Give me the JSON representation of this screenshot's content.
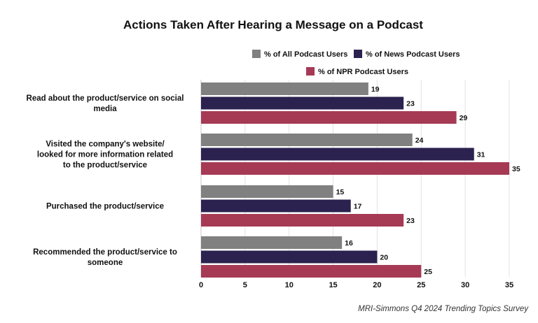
{
  "chart_data": {
    "type": "bar",
    "orientation": "horizontal",
    "title": "Actions Taken After Hearing a Message on a Podcast",
    "categories": [
      [
        "Read about the product/service on social",
        "media"
      ],
      [
        "Visited the company's website/",
        "looked for more information related",
        "to the product/service"
      ],
      [
        "Purchased the product/service"
      ],
      [
        "Recommended the product/service to",
        "someone"
      ]
    ],
    "series": [
      {
        "name": "% of All Podcast Users",
        "color": "#808080",
        "values": [
          19,
          24,
          15,
          16
        ]
      },
      {
        "name": "% of News Podcast Users",
        "color": "#2b2250",
        "values": [
          23,
          31,
          17,
          20
        ]
      },
      {
        "name": "% of NPR Podcast Users",
        "color": "#a63a55",
        "values": [
          29,
          35,
          23,
          25
        ]
      }
    ],
    "xlim": [
      0,
      35
    ],
    "xticks": [
      0,
      5,
      10,
      15,
      20,
      25,
      30,
      35
    ],
    "grid": true,
    "legend": "top-right"
  },
  "source": "MRI-Simmons Q4 2024 Trending Topics Survey"
}
